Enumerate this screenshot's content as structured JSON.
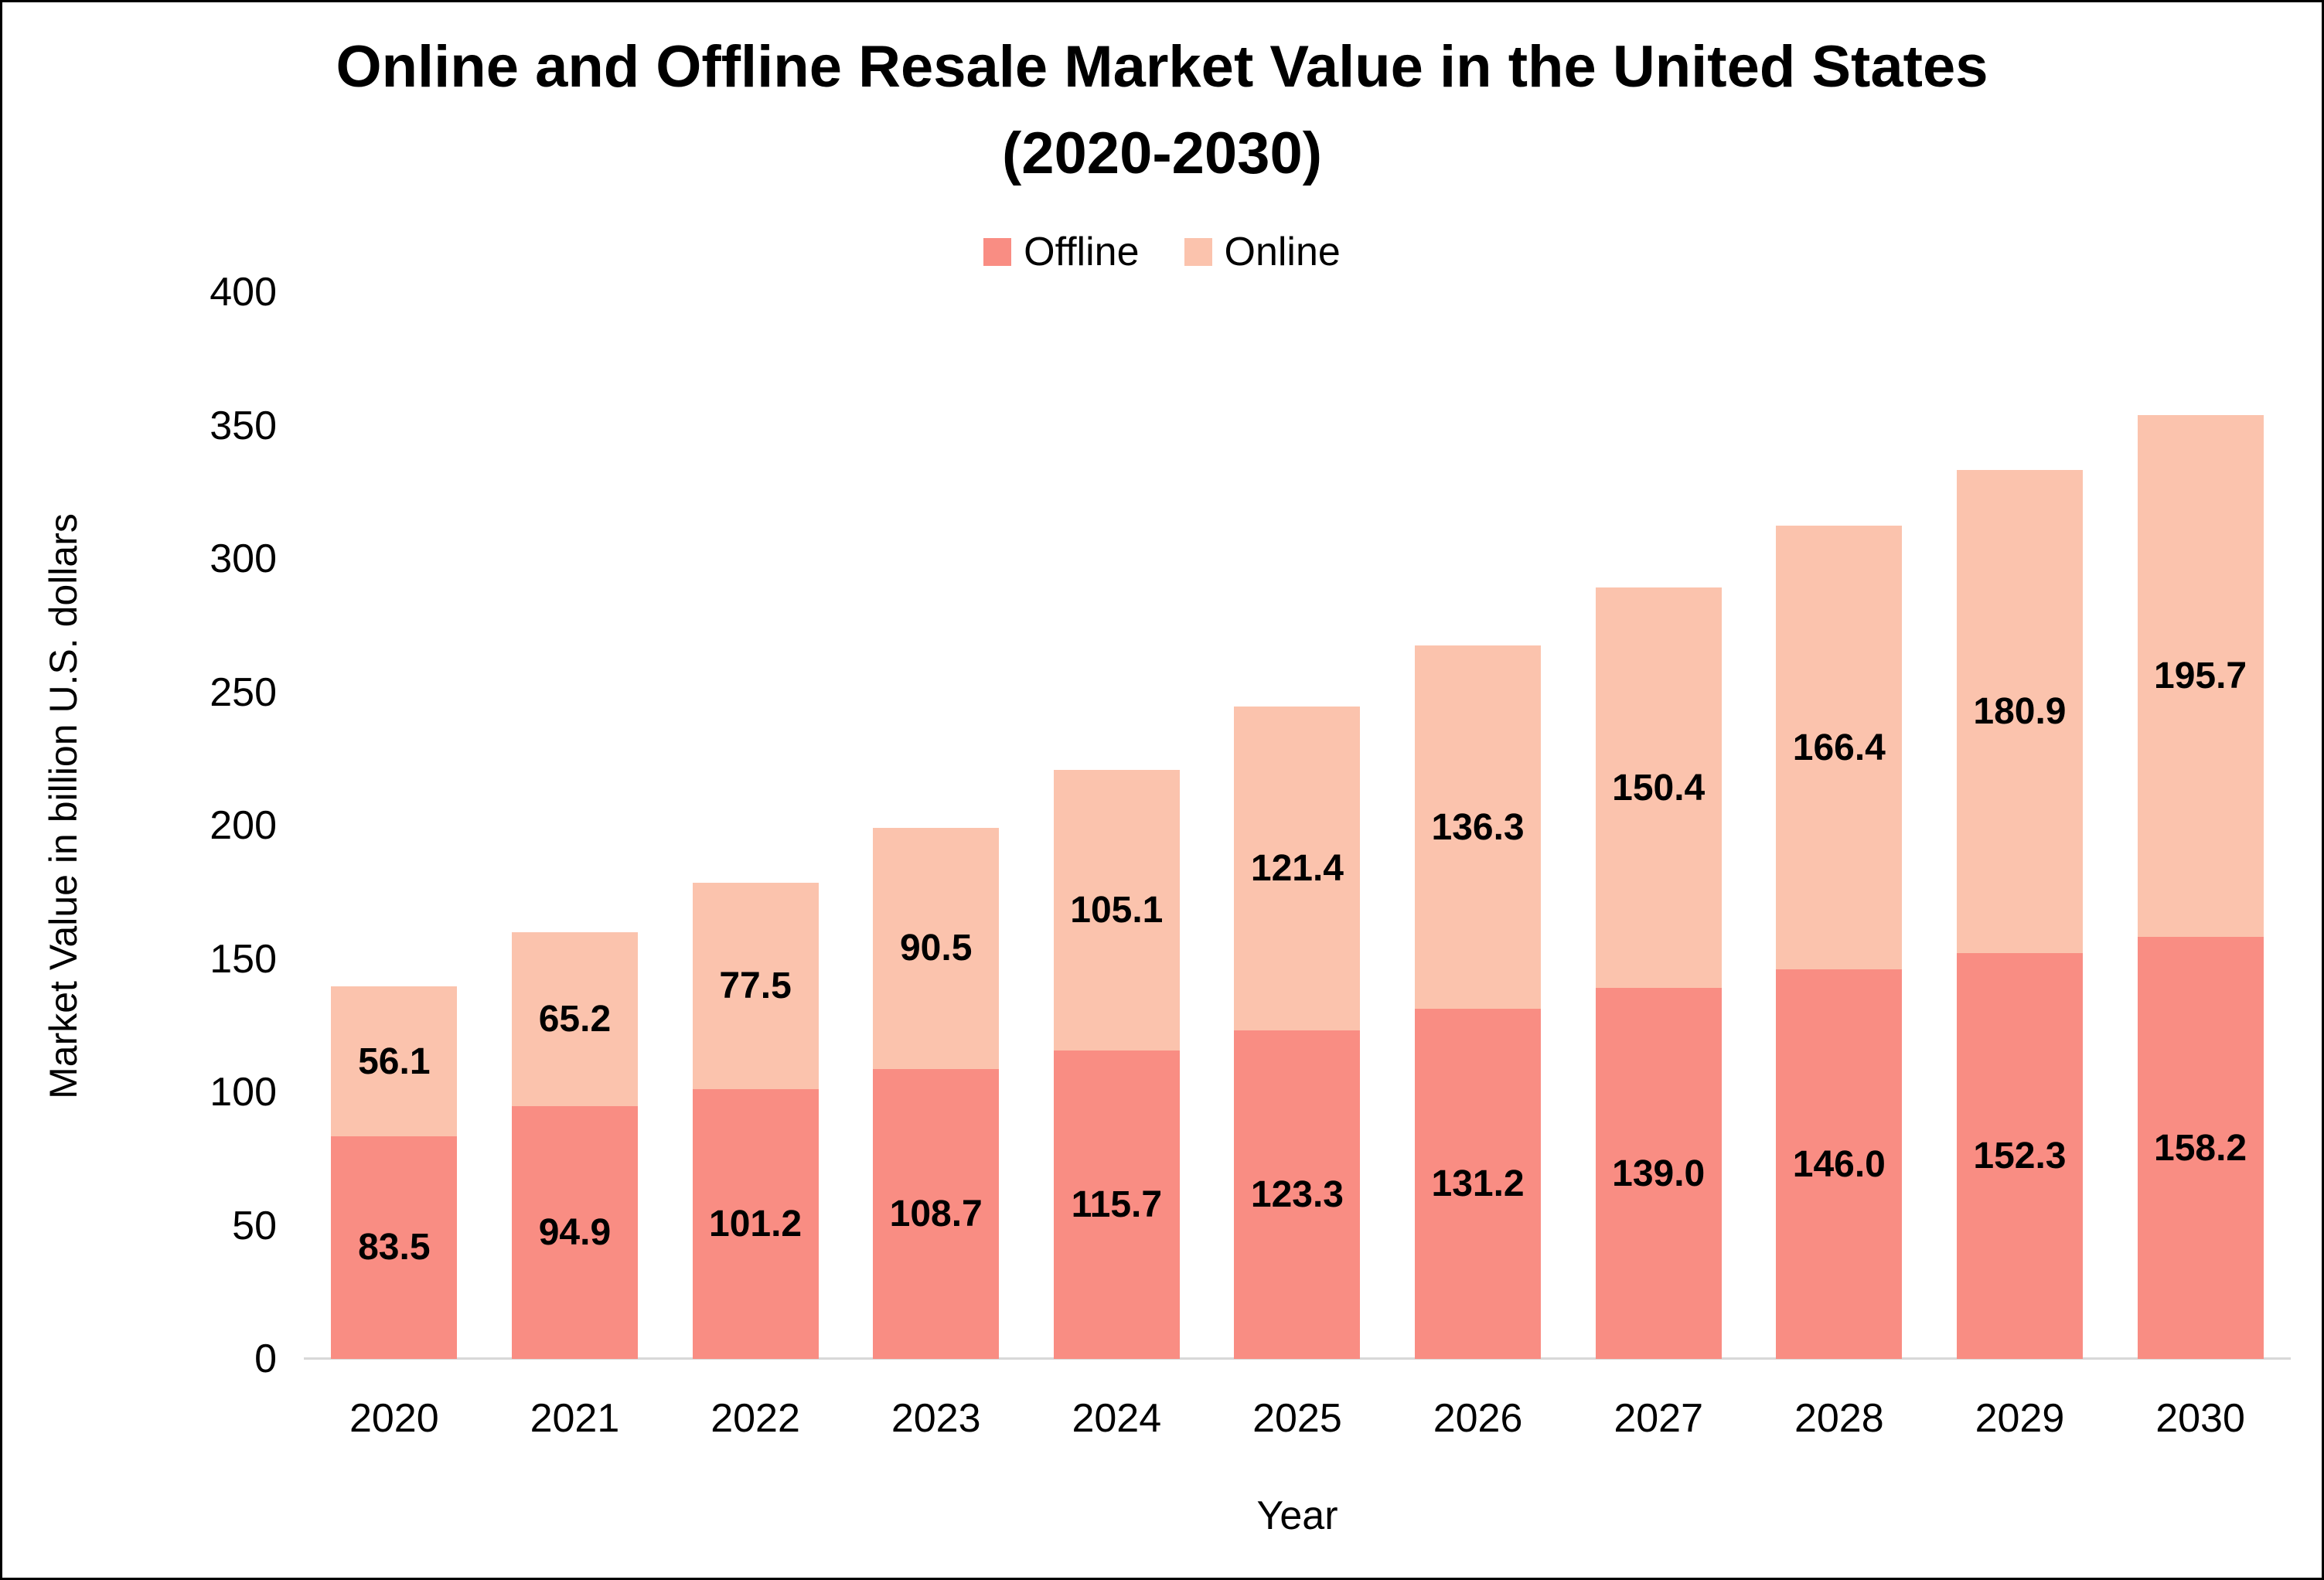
{
  "title": {
    "line1": "Online and Offline Resale Market Value in the United States",
    "line2": "(2020-2030)"
  },
  "legend": {
    "items": [
      {
        "label": "Offline",
        "color": "#F98D83"
      },
      {
        "label": "Online",
        "color": "#FBC3AD"
      }
    ]
  },
  "axes": {
    "y_title": "Market Value in billion U.S. dollars",
    "x_title": "Year",
    "y_ticks": [
      0,
      50,
      100,
      150,
      200,
      250,
      300,
      350,
      400
    ],
    "y_max": 400
  },
  "colors": {
    "offline_bar": "#F98D83",
    "online_bar": "#FBC3AD",
    "axis_line": "#D8D8D8",
    "text": "#000000",
    "background": "#FFFFFF"
  },
  "chart_data": {
    "type": "bar",
    "stacked": true,
    "title": "Online and Offline Resale Market Value in the United States (2020-2030)",
    "xlabel": "Year",
    "ylabel": "Market Value in billion U.S. dollars",
    "ylim": [
      0,
      400
    ],
    "grid": false,
    "legend_position": "top-center",
    "categories": [
      "2020",
      "2021",
      "2022",
      "2023",
      "2024",
      "2025",
      "2026",
      "2027",
      "2028",
      "2029",
      "2030"
    ],
    "series": [
      {
        "name": "Offline",
        "color": "#F98D83",
        "values": [
          83.5,
          94.9,
          101.2,
          108.7,
          115.7,
          123.3,
          131.2,
          139.0,
          146.0,
          152.3,
          158.2
        ]
      },
      {
        "name": "Online",
        "color": "#FBC3AD",
        "values": [
          56.1,
          65.2,
          77.5,
          90.5,
          105.1,
          121.4,
          136.3,
          150.4,
          166.4,
          180.9,
          195.7
        ]
      }
    ]
  }
}
